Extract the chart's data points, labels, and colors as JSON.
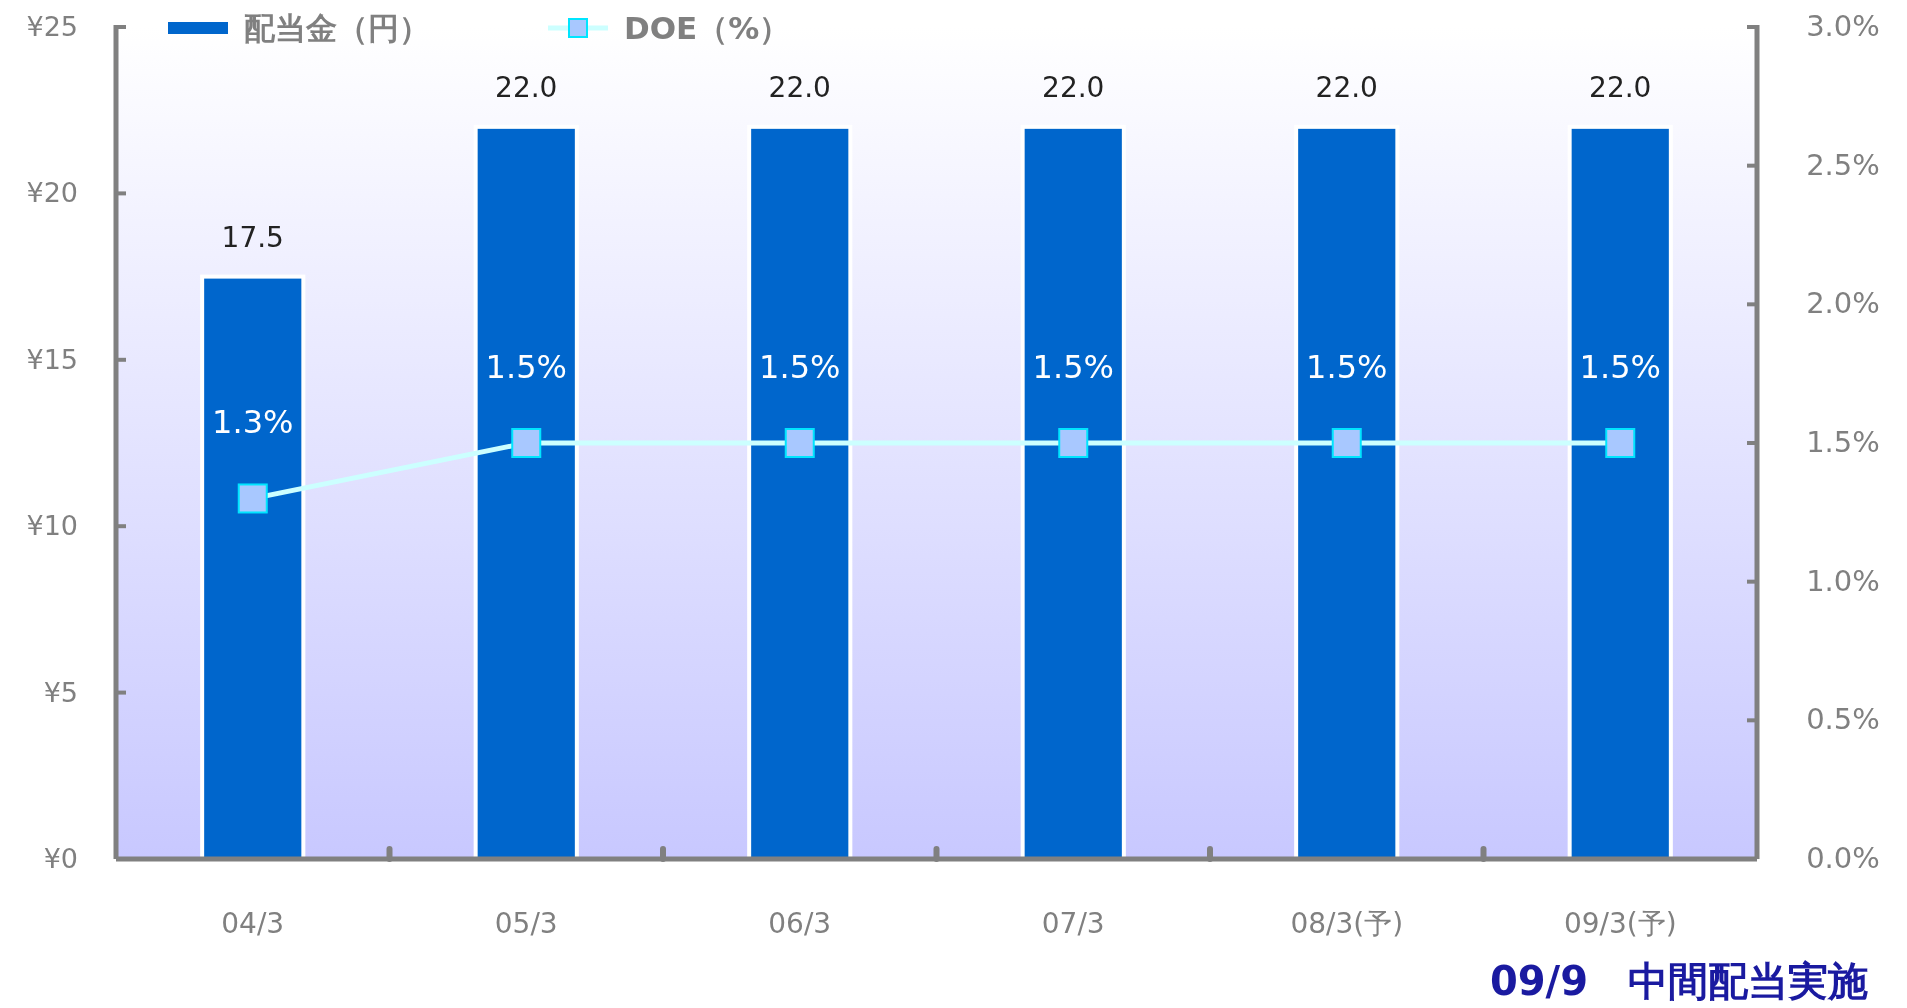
{
  "chart_data": {
    "type": "bar",
    "categories": [
      "04/3",
      "05/3",
      "06/3",
      "07/3",
      "08/3(予)",
      "09/3(予)"
    ],
    "series": [
      {
        "name": "配当金（円）",
        "color": "#0066cc",
        "values": [
          17.5,
          22.0,
          22.0,
          22.0,
          22.0,
          22.0
        ],
        "value_labels": [
          "17.5",
          "22.0",
          "22.0",
          "22.0",
          "22.0",
          "22.0"
        ]
      },
      {
        "name": "DOE（%）",
        "type": "line",
        "axis": "y2",
        "color": "#ccffff",
        "marker": "square",
        "values": [
          1.3,
          1.5,
          1.5,
          1.5,
          1.5,
          1.5
        ],
        "value_labels": [
          "1.3%",
          "1.5%",
          "1.5%",
          "1.5%",
          "1.5%",
          "1.5%"
        ]
      }
    ],
    "ylim": [
      0,
      25
    ],
    "yticks": [
      {
        "value": 0,
        "label": "¥0"
      },
      {
        "value": 5,
        "label": "¥5"
      },
      {
        "value": 10,
        "label": "¥10"
      },
      {
        "value": 15,
        "label": "¥15"
      },
      {
        "value": 20,
        "label": "¥20"
      },
      {
        "value": 25,
        "label": "¥25"
      }
    ],
    "y2lim": [
      0,
      3
    ],
    "y2ticks": [
      {
        "value": 0,
        "label": "0.0%"
      },
      {
        "value": 0.5,
        "label": "0.5%"
      },
      {
        "value": 1,
        "label": "1.0%"
      },
      {
        "value": 1.5,
        "label": "1.5%"
      },
      {
        "value": 2,
        "label": "2.0%"
      },
      {
        "value": 2.5,
        "label": "2.5%"
      },
      {
        "value": 3,
        "label": "3.0%"
      }
    ],
    "legend": "top left",
    "grid": false,
    "annotations": [
      "09/9　中間配当実施"
    ]
  }
}
